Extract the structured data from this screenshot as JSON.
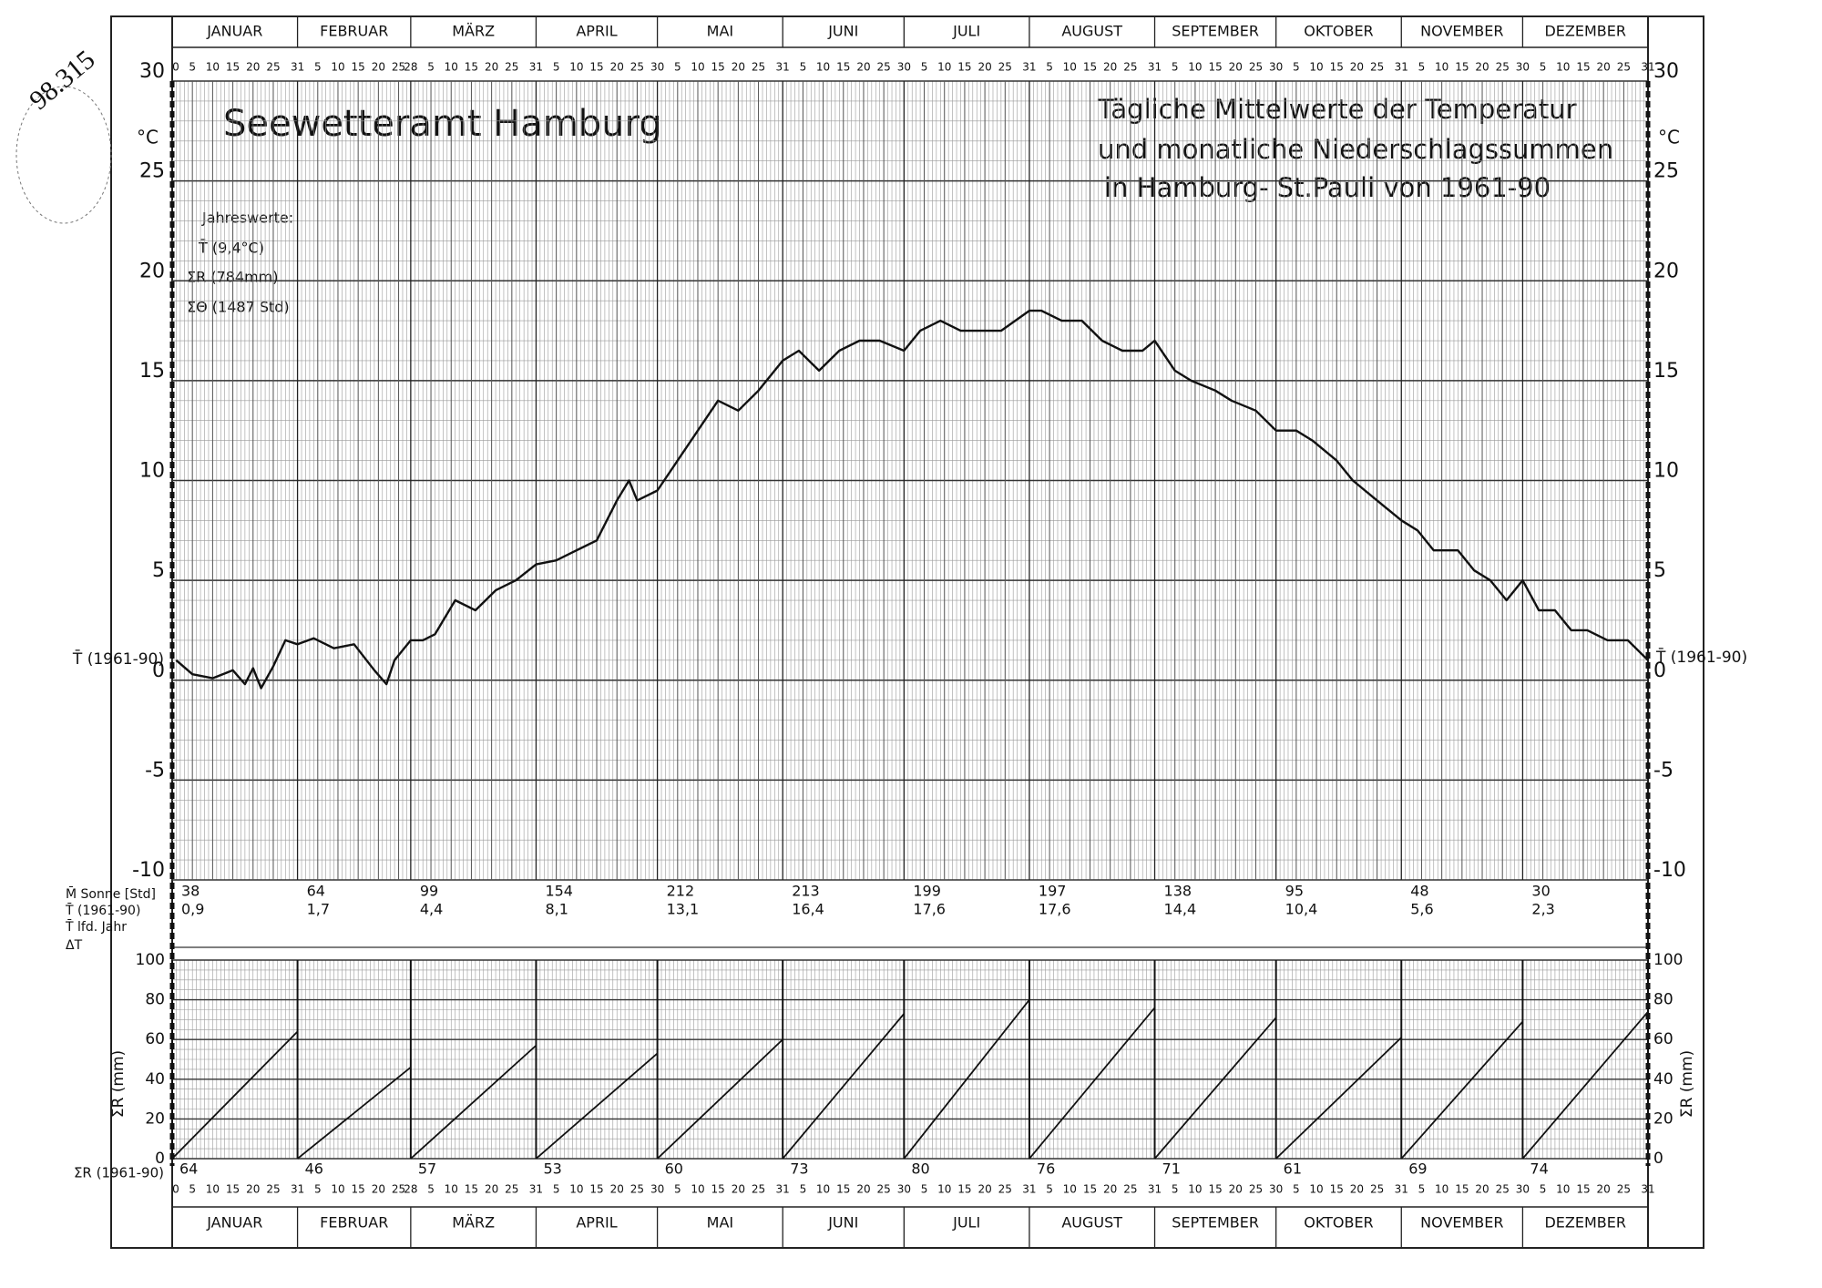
{
  "chart_data": {
    "type": "line",
    "title": "Seewetteramt Hamburg",
    "subtitle": [
      "Tägliche Mittelwerte der Temperatur",
      "und monatliche Niederschlagssummen",
      "in Hamburg- St.Pauli von 1961-90"
    ],
    "annual": [
      "Jahreswerte:",
      "T̄ (9,4°C)",
      "ΣR (784mm)",
      "ΣΘ (1487 Std)"
    ],
    "unit_label": "°C",
    "mean_label": "T̄ (1961-90)",
    "row_labels": [
      "M̄ Sonne [Std]",
      "T̄ (1961-90)",
      "T̄ lfd. Jahr",
      "ΔT"
    ],
    "precip_axis_label": "ΣR (mm)",
    "precip_row_label": "Σ̄R (1961-90)",
    "months": [
      "JANUAR",
      "FEBRUAR",
      "MÄRZ",
      "APRIL",
      "MAI",
      "JUNI",
      "JULI",
      "AUGUST",
      "SEPTEMBER",
      "OKTOBER",
      "NOVEMBER",
      "DEZEMBER"
    ],
    "month_days": [
      31,
      28,
      31,
      30,
      31,
      30,
      31,
      31,
      30,
      31,
      30,
      31
    ],
    "day_start": 0,
    "day_ticks": [
      5,
      10,
      15,
      20,
      25
    ],
    "series": [
      {
        "name": "T̄ (1961-90)",
        "color": "#111111",
        "x": [
          1,
          5,
          10,
          15,
          18,
          20,
          22,
          25,
          28,
          31,
          35,
          40,
          45,
          50,
          53,
          55,
          59,
          62,
          65,
          70,
          75,
          80,
          85,
          90,
          95,
          100,
          105,
          110,
          113,
          115,
          120,
          125,
          130,
          135,
          140,
          145,
          151,
          155,
          160,
          165,
          170,
          175,
          181,
          185,
          190,
          195,
          200,
          205,
          212,
          215,
          220,
          225,
          230,
          235,
          240,
          243,
          248,
          252,
          258,
          262,
          268,
          273,
          278,
          282,
          288,
          292,
          298,
          304,
          308,
          312,
          318,
          322,
          326,
          330,
          334,
          338,
          342,
          346,
          350,
          355,
          360,
          365
        ],
        "values": [
          1.0,
          0.3,
          0.1,
          0.5,
          -0.2,
          0.6,
          -0.4,
          0.7,
          2.0,
          1.8,
          2.1,
          1.6,
          1.8,
          0.5,
          -0.2,
          1.0,
          2.0,
          2.0,
          2.3,
          4.0,
          3.5,
          4.5,
          5.0,
          5.8,
          6.0,
          6.5,
          7.0,
          9.0,
          10.0,
          9.0,
          9.5,
          11.0,
          12.5,
          14.0,
          13.5,
          14.5,
          16.0,
          16.5,
          15.5,
          16.5,
          17.0,
          17.0,
          16.5,
          17.5,
          18.0,
          17.5,
          17.5,
          17.5,
          18.5,
          18.5,
          18.0,
          18.0,
          17.0,
          16.5,
          16.5,
          17.0,
          15.5,
          15.0,
          14.5,
          14.0,
          13.5,
          12.5,
          12.5,
          12.0,
          11.0,
          10.0,
          9.0,
          8.0,
          7.5,
          6.5,
          6.5,
          5.5,
          5.0,
          4.0,
          5.0,
          3.5,
          3.5,
          2.5,
          2.5,
          2.0,
          2.0,
          1.0
        ]
      }
    ],
    "ylim": [
      -10,
      30
    ],
    "yticks": [
      -10,
      -5,
      0,
      5,
      10,
      15,
      20,
      25,
      30
    ],
    "sunshine": [
      38,
      64,
      99,
      154,
      212,
      213,
      199,
      197,
      138,
      95,
      48,
      30
    ],
    "monthly_temp": [
      0.9,
      1.7,
      4.4,
      8.1,
      13.1,
      16.4,
      17.6,
      17.6,
      14.4,
      10.4,
      5.6,
      2.3
    ],
    "monthly_temp_labels": [
      "0,9",
      "1,7",
      "4,4",
      "8,1",
      "13,1",
      "16,4",
      "17,6",
      "17,6",
      "14,4",
      "10,4",
      "5,6",
      "2,3"
    ],
    "precip": [
      64,
      46,
      57,
      53,
      60,
      73,
      80,
      76,
      71,
      61,
      69,
      74
    ],
    "precip_ylim": [
      0,
      100
    ],
    "precip_yticks": [
      0,
      20,
      40,
      60,
      80,
      100
    ],
    "stamp": "98.315"
  }
}
